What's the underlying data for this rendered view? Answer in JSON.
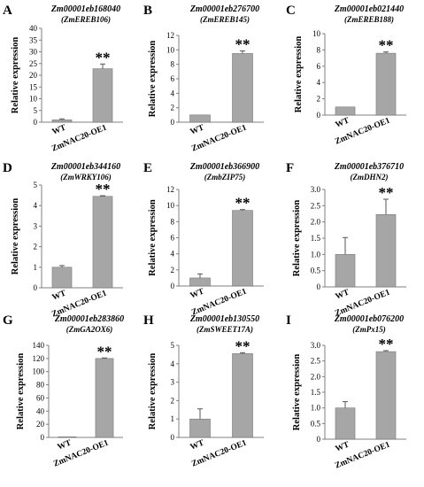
{
  "chart_data": [
    {
      "letter": "A",
      "type": "bar",
      "title": "Zm00001eb168040",
      "subtitle": "(ZmEREB106)",
      "ylabel": "Relative expression",
      "categories": [
        "WT",
        "ZmNAC20-OE1"
      ],
      "values": [
        1.0,
        22.8
      ],
      "errors": [
        0.4,
        2.0
      ],
      "significance": [
        "",
        "**"
      ],
      "ylim": [
        0,
        40
      ],
      "yticks": [
        "0",
        "5",
        "10",
        "15",
        "20",
        "25",
        "30",
        "35",
        "40"
      ]
    },
    {
      "letter": "B",
      "type": "bar",
      "title": "Zm00001eb276700",
      "subtitle": "(ZmEREB145)",
      "ylabel": "Relative expression",
      "categories": [
        "WT",
        "ZmNAC20-OE1"
      ],
      "values": [
        1.0,
        9.5
      ],
      "errors": [
        0.0,
        0.35
      ],
      "significance": [
        "",
        "**"
      ],
      "ylim": [
        0,
        12
      ],
      "yticks": [
        "0",
        "2",
        "4",
        "6",
        "8",
        "10",
        "12"
      ]
    },
    {
      "letter": "C",
      "type": "bar",
      "title": "Zm00001eb021440",
      "subtitle": "(ZmEREB188)",
      "ylabel": "Relative expression",
      "categories": [
        "WT",
        "ZmNAC20-OE1"
      ],
      "values": [
        1.0,
        7.6
      ],
      "errors": [
        0.0,
        0.15
      ],
      "significance": [
        "",
        "**"
      ],
      "ylim": [
        0,
        10
      ],
      "yticks": [
        "0",
        "2",
        "4",
        "6",
        "8",
        "10"
      ]
    },
    {
      "letter": "D",
      "type": "bar",
      "title": "Zm00001eb344160",
      "subtitle": "(ZmWRKY106)",
      "ylabel": "Relative expression",
      "categories": [
        "WT",
        "ZmNAC20-OE1"
      ],
      "values": [
        1.0,
        4.45
      ],
      "errors": [
        0.08,
        0.03
      ],
      "significance": [
        "",
        "**"
      ],
      "ylim": [
        0,
        5
      ],
      "yticks": [
        "0",
        "1",
        "2",
        "3",
        "4",
        "5"
      ]
    },
    {
      "letter": "E",
      "type": "bar",
      "title": "Zm00001eb366900",
      "subtitle": "(ZmbZIP75)",
      "ylabel": "Relative expression",
      "categories": [
        "WT",
        "ZmNAC20-OE1"
      ],
      "values": [
        1.0,
        9.4
      ],
      "errors": [
        0.5,
        0.1
      ],
      "significance": [
        "",
        "**"
      ],
      "ylim": [
        0,
        12
      ],
      "yticks": [
        "0",
        "2",
        "4",
        "6",
        "8",
        "10",
        "12"
      ]
    },
    {
      "letter": "F",
      "type": "bar",
      "title": "Zm00001eb376710",
      "subtitle": "(ZmDHN2)",
      "ylabel": "Relative expression",
      "categories": [
        "WT",
        "ZmNAC20-OE1"
      ],
      "values": [
        1.0,
        2.23
      ],
      "errors": [
        0.52,
        0.47
      ],
      "significance": [
        "",
        "**"
      ],
      "ylim": [
        0,
        3.0
      ],
      "yticks": [
        "0",
        "0.5",
        "1.0",
        "1.5",
        "2.0",
        "2.5",
        "3.0"
      ]
    },
    {
      "letter": "G",
      "type": "bar",
      "title": "Zm00001eb283860",
      "subtitle": "(ZmGA2OX6)",
      "ylabel": "Relative expression",
      "categories": [
        "WT",
        "ZmNAC20-OE1"
      ],
      "values": [
        1.0,
        120
      ],
      "errors": [
        0.0,
        0.8
      ],
      "significance": [
        "",
        "**"
      ],
      "ylim": [
        0,
        140
      ],
      "yticks": [
        "0",
        "20",
        "40",
        "60",
        "80",
        "100",
        "120",
        "140"
      ]
    },
    {
      "letter": "H",
      "type": "bar",
      "title": "Zm00001eb130550",
      "subtitle": "(ZmSWEET17A)",
      "ylabel": "Relative expression",
      "categories": [
        "WT",
        "ZmNAC20-OE1"
      ],
      "values": [
        1.0,
        4.55
      ],
      "errors": [
        0.55,
        0.05
      ],
      "significance": [
        "",
        "**"
      ],
      "ylim": [
        0,
        5
      ],
      "yticks": [
        "0",
        "1",
        "2",
        "3",
        "4",
        "5"
      ]
    },
    {
      "letter": "I",
      "type": "bar",
      "title": "Zm00001eb076200",
      "subtitle": "(ZmPx15)",
      "ylabel": "Relative expression",
      "categories": [
        "WT",
        "ZmNAC20-OE1"
      ],
      "values": [
        1.0,
        2.8
      ],
      "errors": [
        0.2,
        0.03
      ],
      "significance": [
        "",
        "**"
      ],
      "ylim": [
        0,
        3.0
      ],
      "yticks": [
        "0",
        "0.5",
        "1.0",
        "1.5",
        "2.0",
        "2.5",
        "3.0"
      ]
    }
  ],
  "colors": {
    "bar_fill": "#a6a6a6",
    "bar_stroke": "#6b6b6b",
    "axis": "#7f7f7f"
  }
}
